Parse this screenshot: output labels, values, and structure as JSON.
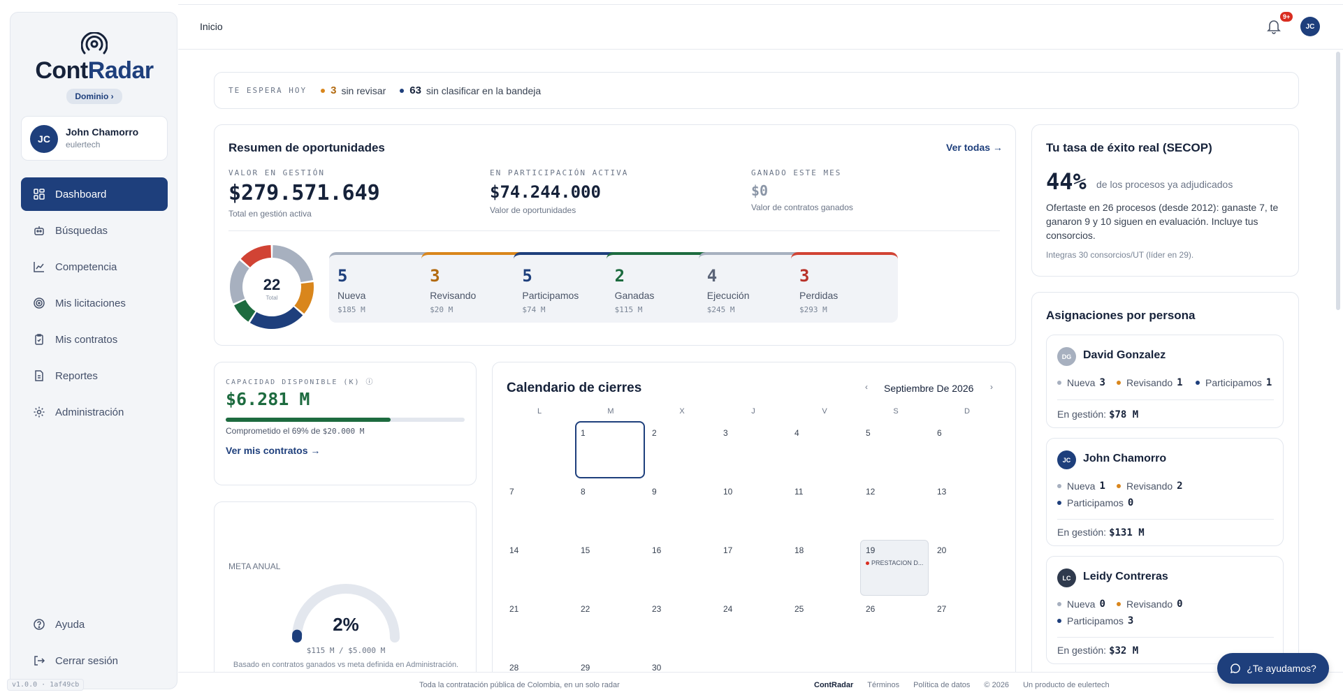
{
  "app": {
    "logo_part1": "Cont",
    "logo_part2": "Radar",
    "domain_label": "Dominio ›",
    "version": "v1.0.0 · 1af49cb"
  },
  "colors": {
    "primary": "#1e3f7c",
    "success": "#1d6b3f",
    "warning": "#d9861c",
    "danger": "#d14334",
    "muted": "#a7b0bf"
  },
  "user": {
    "initials": "JC",
    "name": "John Chamorro",
    "org": "eulertech"
  },
  "nav": {
    "items": [
      {
        "label": "Dashboard",
        "icon": "dashboard-icon"
      },
      {
        "label": "Búsquedas",
        "icon": "robot-icon"
      },
      {
        "label": "Competencia",
        "icon": "chart-line-icon"
      },
      {
        "label": "Mis licitaciones",
        "icon": "target-icon"
      },
      {
        "label": "Mis contratos",
        "icon": "clipboard-icon"
      },
      {
        "label": "Reportes",
        "icon": "file-icon"
      },
      {
        "label": "Administración",
        "icon": "gear-icon"
      }
    ],
    "bottom": [
      {
        "label": "Ayuda",
        "icon": "help-icon"
      },
      {
        "label": "Cerrar sesión",
        "icon": "logout-icon"
      }
    ]
  },
  "topbar": {
    "breadcrumb": "Inicio",
    "notif_badge": "9+",
    "avatar": "JC"
  },
  "today": {
    "label": "TE ESPERA HOY",
    "unreviewed_count": "3",
    "unreviewed_text": "sin revisar",
    "unclassified_count": "63",
    "unclassified_text": "sin clasificar en la bandeja"
  },
  "resumen": {
    "title": "Resumen de oportunidades",
    "see_all": "Ver todas →",
    "kpis": [
      {
        "label": "VALOR EN GESTIÓN",
        "value": "$279.571.649",
        "sub": "Total en gestión activa"
      },
      {
        "label": "EN PARTICIPACIÓN ACTIVA",
        "value": "$74.244.000",
        "sub": "Valor de oportunidades"
      },
      {
        "label": "GANADO ESTE MES",
        "value": "$0",
        "sub": "Valor de contratos ganados"
      }
    ],
    "donut": {
      "total": "22",
      "total_label": "Total",
      "segments": [
        {
          "stage": "Nueva",
          "value": 5,
          "color": "#a7b0bf"
        },
        {
          "stage": "Revisando",
          "value": 3,
          "color": "#d9861c"
        },
        {
          "stage": "Participamos",
          "value": 5,
          "color": "#1e3f7c"
        },
        {
          "stage": "Ganadas",
          "value": 2,
          "color": "#1d6b3f"
        },
        {
          "stage": "Ejecución",
          "value": 4,
          "color": "#a7b0bf"
        },
        {
          "stage": "Perdidas",
          "value": 3,
          "color": "#d14334"
        }
      ]
    },
    "stages": [
      {
        "count": "5",
        "label": "Nueva",
        "value": "$185 M",
        "color": "#a7b0bf",
        "num_color": "#1e3f7c"
      },
      {
        "count": "3",
        "label": "Revisando",
        "value": "$20 M",
        "color": "#d9861c",
        "num_color": "#b26a10"
      },
      {
        "count": "5",
        "label": "Participamos",
        "value": "$74 M",
        "color": "#1e3f7c",
        "num_color": "#1e3f7c"
      },
      {
        "count": "2",
        "label": "Ganadas",
        "value": "$115 M",
        "color": "#1d6b3f",
        "num_color": "#1d6b3f"
      },
      {
        "count": "4",
        "label": "Ejecución",
        "value": "$245 M",
        "color": "#a7b0bf",
        "num_color": "#5b6478"
      },
      {
        "count": "3",
        "label": "Perdidas",
        "value": "$293 M",
        "color": "#d14334",
        "num_color": "#b8322a"
      }
    ]
  },
  "tasa": {
    "title": "Tu tasa de éxito real (SECOP)",
    "percent": "44%",
    "percent_sub": "de los procesos ya adjudicados",
    "description": "Ofertaste en 26 procesos (desde 2012): ganaste 7, te ganaron 9 y 10 siguen en evaluación. Incluye tus consorcios.",
    "footnote": "Integras 30 consorcios/UT (líder en 29)."
  },
  "capacidad": {
    "label": "CAPACIDAD DISPONIBLE (K)",
    "value": "$6.281 M",
    "used_fraction": 0.69,
    "committed_prefix": "Comprometido el 69% de ",
    "committed_total": "$20.000 M",
    "link": "Ver mis contratos →"
  },
  "meta": {
    "label": "META ANUAL",
    "percent": "2%",
    "fraction": 0.02,
    "progress_text": "$115 M / $5.000 M",
    "note": "Basado en contratos ganados vs meta definida en Administración."
  },
  "calendar": {
    "title": "Calendario de cierres",
    "month": "Septiembre De 2026",
    "weekdays": [
      "L",
      "M",
      "X",
      "J",
      "V",
      "S",
      "D"
    ],
    "start_offset": 1,
    "days_in_month": 30,
    "today": 1,
    "events": [
      {
        "day": 19,
        "label": "PRESTACION D..."
      }
    ]
  },
  "asignaciones": {
    "title": "Asignaciones por persona",
    "people": [
      {
        "initials": "DG",
        "avatar_color": "#a7b0bf",
        "name": "David Gonzalez",
        "nueva": "3",
        "revisando": "1",
        "participamos": "1",
        "gestion": "$78 M"
      },
      {
        "initials": "JC",
        "avatar_color": "#1e3f7c",
        "name": "John Chamorro",
        "nueva": "1",
        "revisando": "2",
        "participamos": "0",
        "gestion": "$131 M"
      },
      {
        "initials": "LC",
        "avatar_color": "#2f3a4d",
        "name": "Leidy Contreras",
        "nueva": "0",
        "revisando": "0",
        "participamos": "3",
        "gestion": "$32 M"
      }
    ],
    "labels": {
      "nueva": "Nueva",
      "revisando": "Revisando",
      "participamos": "Participamos",
      "gestion": "En gestión:"
    }
  },
  "footer": {
    "tagline": "Toda la contratación pública de Colombia, en un solo radar",
    "links": [
      "ContRadar",
      "Términos",
      "Política de datos",
      "© 2026",
      "Un producto de eulertech"
    ]
  },
  "help_button": "¿Te ayudamos?"
}
